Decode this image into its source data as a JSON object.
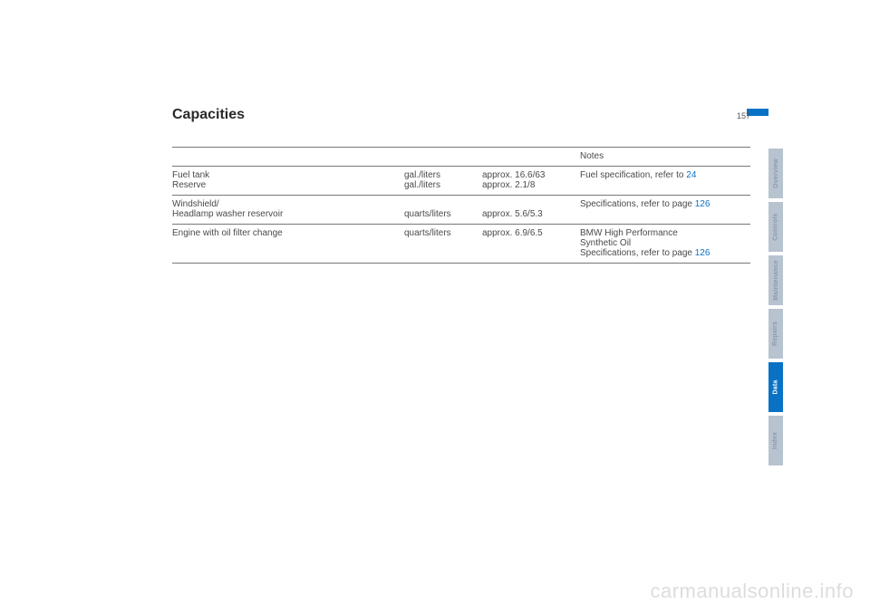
{
  "header": {
    "title": "Capacities",
    "page": "157"
  },
  "table": {
    "notes_header": "Notes",
    "rows": [
      {
        "item_l1": "Fuel tank",
        "item_l2": "Reserve",
        "unit_l1": "gal./liters",
        "unit_l2": "gal./liters",
        "val_l1": "approx. 16.6/63",
        "val_l2": "approx. 2.1/8",
        "note": "Fuel specification, refer to ",
        "link": "24"
      },
      {
        "item_l1": "Windshield/",
        "item_l2": "Headlamp washer reservoir",
        "unit_l1": "",
        "unit_l2": "quarts/liters",
        "val_l1": "",
        "val_l2": "approx. 5.6/5.3",
        "note": "Specifications, refer to page ",
        "link": "126"
      },
      {
        "item_l1": "Engine with oil filter change",
        "item_l2": "",
        "unit_l1": "quarts/liters",
        "unit_l2": "",
        "val_l1": "approx. 6.9/6.5",
        "val_l2": "",
        "note_l1": "BMW High Performance",
        "note_l2": "Synthetic Oil",
        "note": "Specifications, refer to page ",
        "link": "126"
      }
    ]
  },
  "tabs": [
    {
      "label": "Overview",
      "active": false
    },
    {
      "label": "Controls",
      "active": false
    },
    {
      "label": "Maintenance",
      "active": false
    },
    {
      "label": "Repairs",
      "active": false
    },
    {
      "label": "Data",
      "active": true
    },
    {
      "label": "Index",
      "active": false
    }
  ],
  "watermark": "carmanualsonline.info",
  "colors": {
    "accent": "#0a72c4",
    "tab_inactive_bg": "#b8c3d0",
    "tab_inactive_fg": "#8b99ab"
  }
}
